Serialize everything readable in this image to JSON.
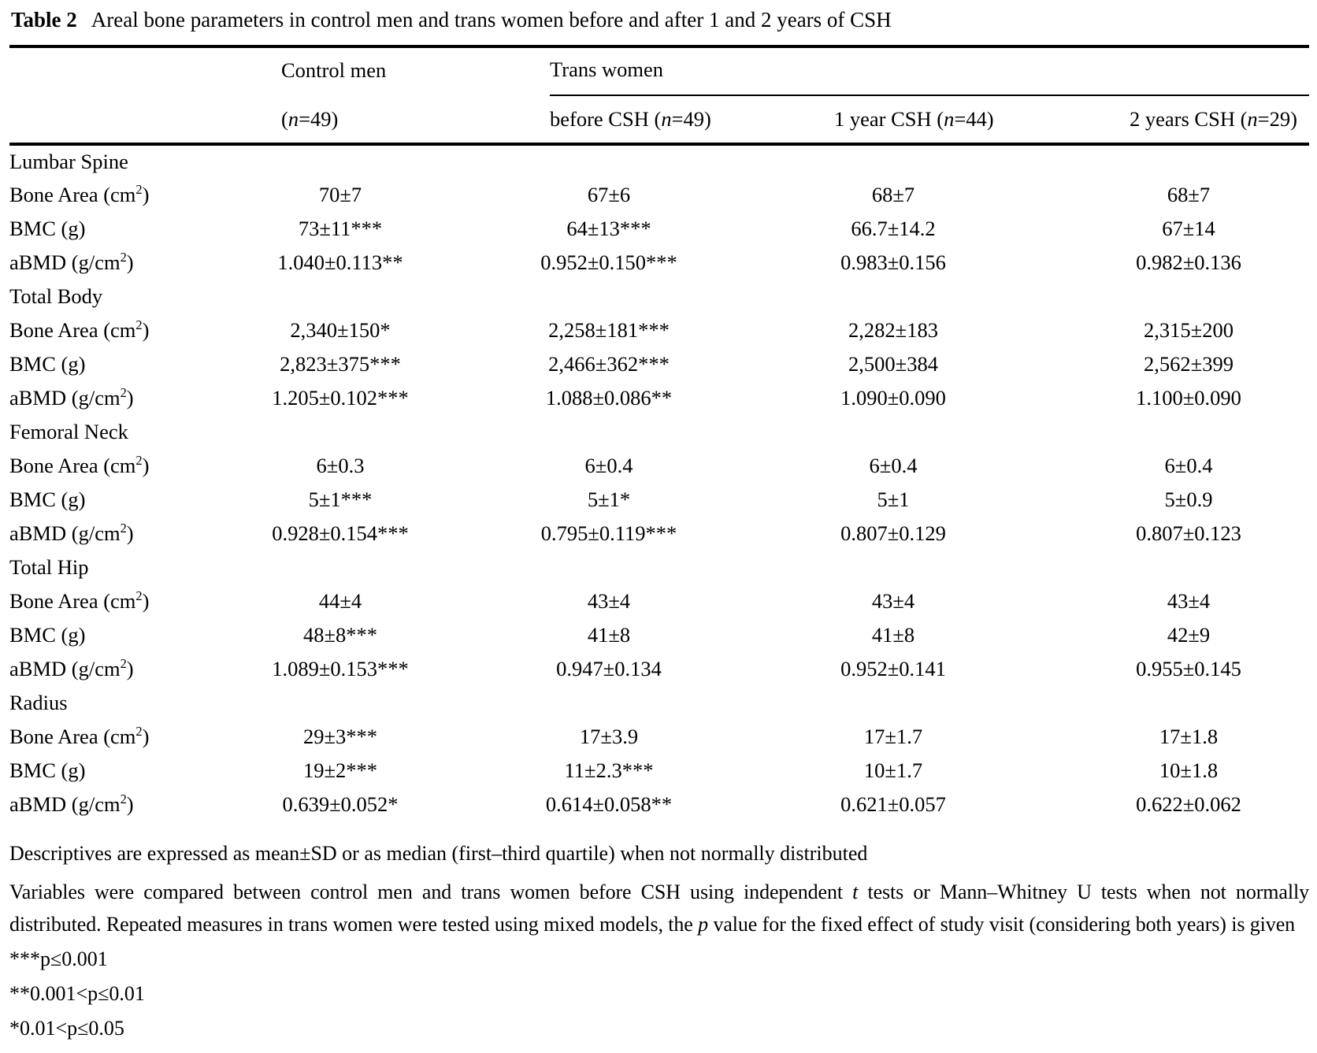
{
  "title": {
    "label": "Table 2",
    "text": "Areal bone parameters in control men and trans women before and after 1 and 2 years of CSH"
  },
  "columns": {
    "control_group": "Control men",
    "trans_group": "Trans women",
    "subheaders": [
      [
        {
          "text": "("
        },
        {
          "text": "n",
          "italic": true
        },
        {
          "text": "=49)"
        }
      ],
      [
        {
          "text": "before CSH ("
        },
        {
          "text": "n",
          "italic": true
        },
        {
          "text": "=49)"
        }
      ],
      [
        {
          "text": "1 year CSH ("
        },
        {
          "text": "n",
          "italic": true
        },
        {
          "text": "=44)"
        }
      ],
      [
        {
          "text": "2 years CSH ("
        },
        {
          "text": "n",
          "italic": true
        },
        {
          "text": "=29)"
        }
      ]
    ]
  },
  "sections": [
    {
      "name": "Lumbar Spine",
      "rows": [
        {
          "label": [
            {
              "text": "Bone Area (cm"
            },
            {
              "text": "2",
              "sup": true
            },
            {
              "text": ")"
            }
          ],
          "values": [
            "70±7",
            "67±6",
            "68±7",
            "68±7"
          ]
        },
        {
          "label": [
            {
              "text": "BMC (g)"
            }
          ],
          "values": [
            "73±11***",
            "64±13***",
            "66.7±14.2",
            "67±14"
          ]
        },
        {
          "label": [
            {
              "text": "aBMD (g/cm"
            },
            {
              "text": "2",
              "sup": true
            },
            {
              "text": ")"
            }
          ],
          "values": [
            "1.040±0.113**",
            "0.952±0.150***",
            "0.983±0.156",
            "0.982±0.136"
          ]
        }
      ]
    },
    {
      "name": "Total Body",
      "rows": [
        {
          "label": [
            {
              "text": "Bone Area (cm"
            },
            {
              "text": "2",
              "sup": true
            },
            {
              "text": ")"
            }
          ],
          "values": [
            "2,340±150*",
            "2,258±181***",
            "2,282±183",
            "2,315±200"
          ]
        },
        {
          "label": [
            {
              "text": "BMC (g)"
            }
          ],
          "values": [
            "2,823±375***",
            "2,466±362***",
            "2,500±384",
            "2,562±399"
          ]
        },
        {
          "label": [
            {
              "text": "aBMD (g/cm"
            },
            {
              "text": "2",
              "sup": true
            },
            {
              "text": ")"
            }
          ],
          "values": [
            "1.205±0.102***",
            "1.088±0.086**",
            "1.090±0.090",
            "1.100±0.090"
          ]
        }
      ]
    },
    {
      "name": "Femoral Neck",
      "rows": [
        {
          "label": [
            {
              "text": "Bone Area (cm"
            },
            {
              "text": "2",
              "sup": true
            },
            {
              "text": ")"
            }
          ],
          "values": [
            "6±0.3",
            "6±0.4",
            "6±0.4",
            "6±0.4"
          ]
        },
        {
          "label": [
            {
              "text": "BMC (g)"
            }
          ],
          "values": [
            "5±1***",
            "5±1*",
            "5±1",
            "5±0.9"
          ]
        },
        {
          "label": [
            {
              "text": "aBMD (g/cm"
            },
            {
              "text": "2",
              "sup": true
            },
            {
              "text": ")"
            }
          ],
          "values": [
            "0.928±0.154***",
            "0.795±0.119***",
            "0.807±0.129",
            "0.807±0.123"
          ]
        }
      ]
    },
    {
      "name": "Total Hip",
      "rows": [
        {
          "label": [
            {
              "text": "Bone Area (cm"
            },
            {
              "text": "2",
              "sup": true
            },
            {
              "text": ")"
            }
          ],
          "values": [
            "44±4",
            "43±4",
            "43±4",
            "43±4"
          ]
        },
        {
          "label": [
            {
              "text": "BMC (g)"
            }
          ],
          "values": [
            "48±8***",
            "41±8",
            "41±8",
            "42±9"
          ]
        },
        {
          "label": [
            {
              "text": "aBMD (g/cm"
            },
            {
              "text": "2",
              "sup": true
            },
            {
              "text": ")"
            }
          ],
          "values": [
            "1.089±0.153***",
            "0.947±0.134",
            "0.952±0.141",
            "0.955±0.145"
          ]
        }
      ]
    },
    {
      "name": "Radius",
      "rows": [
        {
          "label": [
            {
              "text": "Bone Area (cm"
            },
            {
              "text": "2",
              "sup": true
            },
            {
              "text": ")"
            }
          ],
          "values": [
            "29±3***",
            "17±3.9",
            "17±1.7",
            "17±1.8"
          ]
        },
        {
          "label": [
            {
              "text": "BMC (g)"
            }
          ],
          "values": [
            "19±2***",
            "11±2.3***",
            "10±1.7",
            "10±1.8"
          ]
        },
        {
          "label": [
            {
              "text": "aBMD (g/cm"
            },
            {
              "text": "2",
              "sup": true
            },
            {
              "text": ")"
            }
          ],
          "values": [
            "0.639±0.052*",
            "0.614±0.058**",
            "0.621±0.057",
            "0.622±0.062"
          ]
        }
      ]
    }
  ],
  "footnotes": [
    {
      "style": "plain",
      "segments": [
        {
          "text": "Descriptives are expressed as mean±SD or as median (first–third quartile) when not normally distributed"
        }
      ]
    },
    {
      "style": "justify",
      "segments": [
        {
          "text": "Variables were compared between control men and trans women before CSH using independent "
        },
        {
          "text": "t",
          "italic": true
        },
        {
          "text": " tests or Mann–Whitney U tests when not normally distributed. Repeated measures in trans women were tested using mixed models, the "
        },
        {
          "text": "p",
          "italic": true
        },
        {
          "text": " value for the fixed effect of study visit (considering both years) is given"
        }
      ]
    },
    {
      "style": "sym",
      "segments": [
        {
          "text": "***p≤0.001"
        }
      ]
    },
    {
      "style": "sym",
      "segments": [
        {
          "text": "**0.001<p≤0.01"
        }
      ]
    },
    {
      "style": "sym",
      "segments": [
        {
          "text": "*0.01<p≤0.05"
        }
      ]
    }
  ]
}
